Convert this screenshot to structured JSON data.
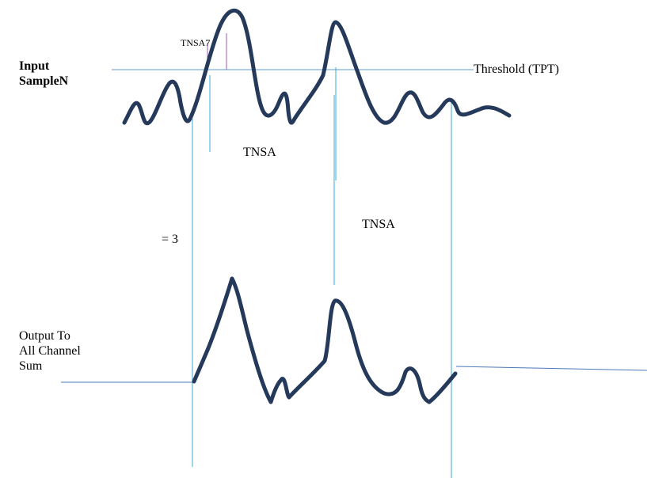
{
  "labels": {
    "input_line1": "Input",
    "input_line2": "SampleN",
    "threshold": "Threshold (TPT)",
    "tnsa_small": "TNSA7",
    "tnsa_1": "TNSA",
    "tnsa_2": "TNSA",
    "equals_3": "= 3",
    "output_line1": "Output To",
    "output_line2": "All Channel",
    "output_line3": "Sum"
  },
  "colors": {
    "waveform": "#25395a",
    "thin_lines": "#3aa9d8",
    "threshold_line": "#5b9bd5",
    "output_baseline": "#4a7ab8",
    "marker_lines": "#9b59b6",
    "text": "#000000"
  }
}
